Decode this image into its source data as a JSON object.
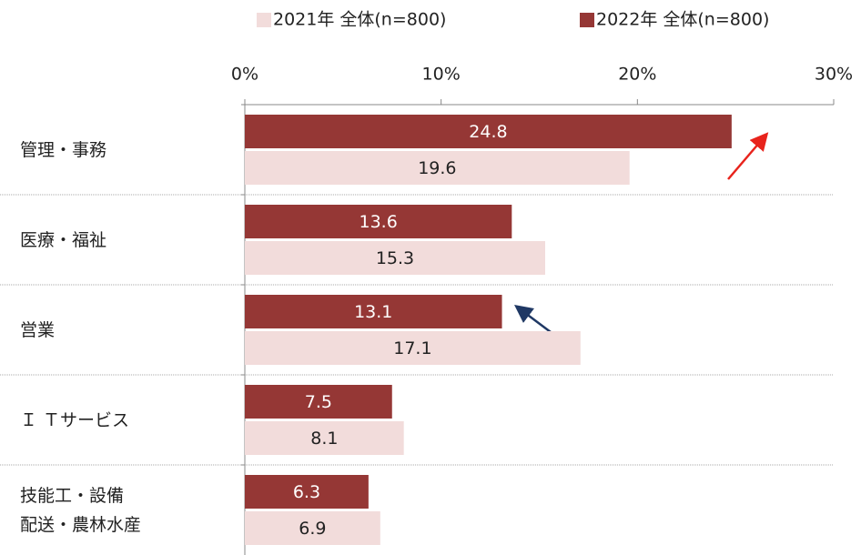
{
  "chart_data": {
    "type": "hbar",
    "categories": [
      "管理・事務",
      "医療・福祉",
      "営業",
      "Ｉ Ｔサービス",
      "技能工・設備\n配送・農林水産"
    ],
    "series": [
      {
        "name": "2022年 全体(n=800)",
        "color": "#953735",
        "label_color": "#ffffff",
        "values": [
          24.8,
          13.6,
          13.1,
          7.5,
          6.3
        ]
      },
      {
        "name": "2021年 全体(n=800)",
        "color": "#f2dcdb",
        "label_color": "#222222",
        "values": [
          19.6,
          15.3,
          17.1,
          8.1,
          6.9
        ]
      }
    ],
    "xlim": [
      0,
      30
    ],
    "xticks": [
      {
        "value": 0,
        "label": "0%"
      },
      {
        "value": 10,
        "label": "10%"
      },
      {
        "value": 20,
        "label": "20%"
      },
      {
        "value": 30,
        "label": "30%"
      }
    ],
    "legend_order": [
      1,
      0
    ]
  }
}
